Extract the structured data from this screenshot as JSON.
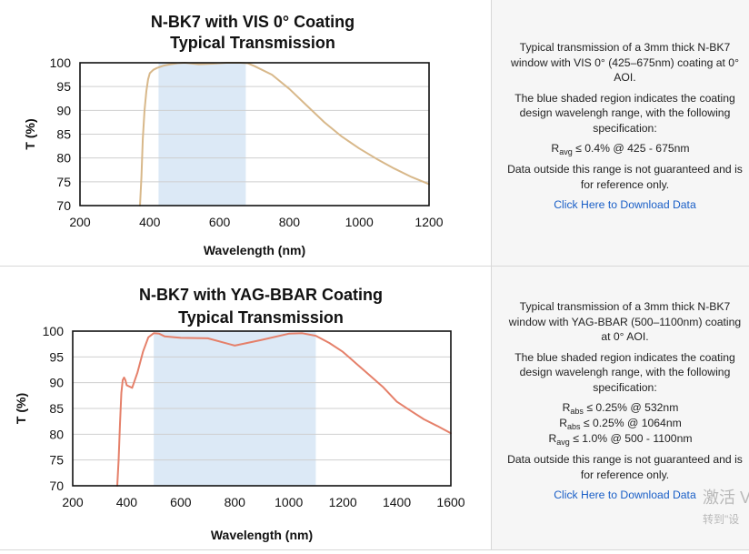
{
  "chart_data": [
    {
      "type": "line",
      "title_lines": [
        "N-BK7 with VIS 0° Coating",
        "Typical Transmission"
      ],
      "xlabel": "Wavelength (nm)",
      "ylabel": "T (%)",
      "xlim": [
        200,
        1200
      ],
      "ylim": [
        70,
        100
      ],
      "xticks": [
        "200",
        "400",
        "600",
        "800",
        "1000",
        "1200"
      ],
      "yticks": [
        "100",
        "95",
        "90",
        "85",
        "80",
        "75",
        "70"
      ],
      "shaded_band": [
        425,
        675
      ],
      "shade_color": "#dce9f6",
      "line_color": "#d8b88a",
      "grid": true,
      "series": [
        {
          "x": [
            372,
            376,
            380,
            385,
            390,
            395,
            400,
            410,
            420,
            440,
            460,
            480,
            500,
            540,
            580,
            620,
            660,
            680,
            700,
            750,
            800,
            850,
            900,
            950,
            1000,
            1050,
            1100,
            1150,
            1200
          ],
          "y": [
            70,
            76,
            84,
            90,
            94,
            96.5,
            97.8,
            98.5,
            98.9,
            99.4,
            99.7,
            99.9,
            100,
            99.7,
            99.8,
            100,
            100,
            99.9,
            99.3,
            97.5,
            94.5,
            91,
            87.5,
            84.5,
            82,
            79.8,
            77.8,
            76,
            74.5
          ]
        }
      ]
    },
    {
      "type": "line",
      "title_lines": [
        "N-BK7 with YAG-BBAR Coating",
        "Typical Transmission"
      ],
      "xlabel": "Wavelength (nm)",
      "ylabel": "T (%)",
      "xlim": [
        200,
        1600
      ],
      "ylim": [
        70,
        100
      ],
      "xticks": [
        "200",
        "400",
        "600",
        "800",
        "1000",
        "1200",
        "1400",
        "1600"
      ],
      "yticks": [
        "100",
        "95",
        "90",
        "85",
        "80",
        "75",
        "70"
      ],
      "shaded_band": [
        500,
        1100
      ],
      "shade_color": "#dce9f6",
      "line_color": "#e5806a",
      "grid": true,
      "series": [
        {
          "x": [
            365,
            370,
            375,
            380,
            385,
            390,
            395,
            400,
            420,
            440,
            460,
            480,
            500,
            520,
            540,
            600,
            700,
            800,
            900,
            1000,
            1050,
            1100,
            1150,
            1200,
            1250,
            1300,
            1350,
            1400,
            1450,
            1500,
            1550,
            1600
          ],
          "y": [
            70,
            75,
            82,
            88,
            90.5,
            91,
            90.5,
            89.5,
            89,
            92,
            96,
            98.8,
            99.6,
            99.5,
            99,
            98.7,
            98.6,
            97.2,
            98.3,
            99.5,
            99.6,
            99.1,
            97.7,
            96,
            93.7,
            91.4,
            89.1,
            86.3,
            84.6,
            82.9,
            81.6,
            80.2
          ]
        }
      ]
    }
  ],
  "panel1": {
    "desc": "Typical transmission of a 3mm thick N-BK7 window with VIS 0° (425–675nm) coating at 0° AOI.",
    "shade_note": "The blue shaded region indicates the coating design wavelengh range, with the following specification:",
    "specs": [
      {
        "sym": "R",
        "sub": "avg",
        "text": "≤ 0.4% @ 425 - 675nm"
      }
    ],
    "disclaimer": "Data outside this range is not guaranteed and is for reference only.",
    "link": "Click Here to Download Data"
  },
  "panel2": {
    "desc": "Typical transmission of a 3mm thick N-BK7 window with YAG-BBAR (500–1100nm) coating at 0° AOI.",
    "shade_note": "The blue shaded region indicates the coating design wavelengh range, with the following specification:",
    "specs": [
      {
        "sym": "R",
        "sub": "abs",
        "text": "≤ 0.25% @ 532nm"
      },
      {
        "sym": "R",
        "sub": "abs",
        "text": "≤ 0.25% @ 1064nm"
      },
      {
        "sym": "R",
        "sub": "avg",
        "text": "≤ 1.0% @ 500 - 1100nm"
      }
    ],
    "disclaimer": "Data outside this range is not guaranteed and is for reference only.",
    "link": "Click Here to Download Data"
  },
  "watermark": {
    "line1": "激活 V",
    "line2": "转到\"设"
  }
}
